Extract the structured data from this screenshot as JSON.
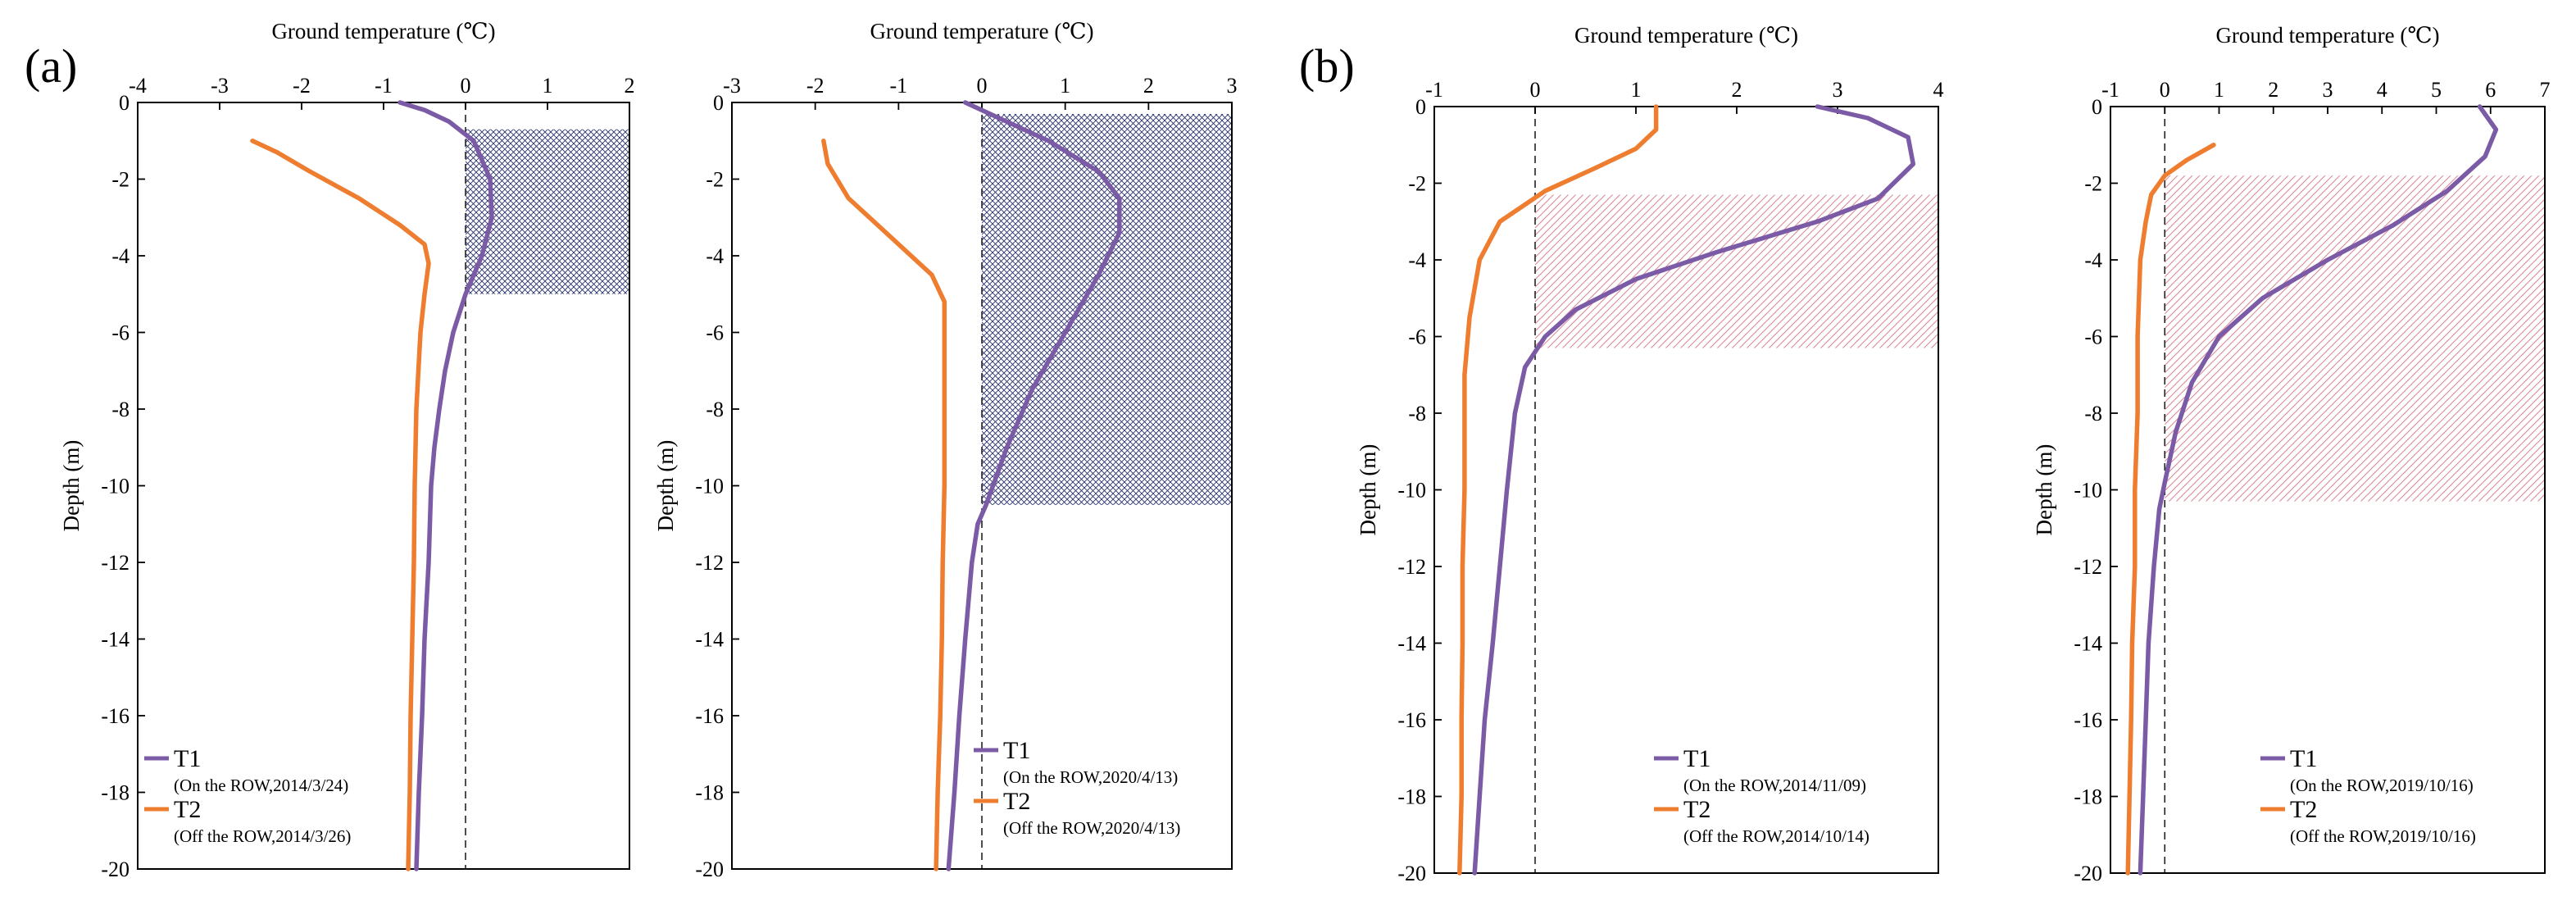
{
  "figure": {
    "panel_labels": [
      "(a)",
      "(b)"
    ],
    "colors": {
      "T1": "#7b5aa6",
      "T2": "#ee7d2f",
      "hatch_a": "#27306a",
      "hatch_b": "#d98a98",
      "background": "#ffffff"
    }
  },
  "chart_data": [
    {
      "type": "line",
      "panel": "(a)",
      "title": "Ground temperature (℃)",
      "xlabel": "Ground temperature (℃)",
      "ylabel": "Depth (m)",
      "xlim": [
        -4,
        2
      ],
      "ylim": [
        -20,
        0
      ],
      "xticks": [
        -4,
        -3,
        -2,
        -1,
        0,
        1,
        2
      ],
      "yticks": [
        0,
        -2,
        -4,
        -6,
        -8,
        -10,
        -12,
        -14,
        -16,
        -18,
        -20
      ],
      "zero_line": "dashed",
      "shaded_region": {
        "x": [
          0,
          2
        ],
        "y": [
          -0.7,
          -5.0
        ],
        "pattern": "crosshatch",
        "color": "hatch_a"
      },
      "series": [
        {
          "name": "T1",
          "label": "(On the ROW,2014/3/24)",
          "color": "T1",
          "points": [
            [
              -0.8,
              0
            ],
            [
              -0.5,
              -0.2
            ],
            [
              -0.2,
              -0.5
            ],
            [
              0.1,
              -1.0
            ],
            [
              0.3,
              -2.0
            ],
            [
              0.32,
              -3.0
            ],
            [
              0.2,
              -4.0
            ],
            [
              0.0,
              -5.0
            ],
            [
              -0.15,
              -6.0
            ],
            [
              -0.25,
              -7.0
            ],
            [
              -0.32,
              -8.0
            ],
            [
              -0.38,
              -9.0
            ],
            [
              -0.42,
              -10.0
            ],
            [
              -0.45,
              -12.0
            ],
            [
              -0.5,
              -14.0
            ],
            [
              -0.53,
              -16.0
            ],
            [
              -0.57,
              -18.0
            ],
            [
              -0.6,
              -20.0
            ]
          ]
        },
        {
          "name": "T2",
          "label": "(Off the ROW,2014/3/26)",
          "color": "T2",
          "points": [
            [
              -2.6,
              -1.0
            ],
            [
              -2.3,
              -1.3
            ],
            [
              -1.9,
              -1.8
            ],
            [
              -1.3,
              -2.5
            ],
            [
              -0.8,
              -3.2
            ],
            [
              -0.5,
              -3.7
            ],
            [
              -0.45,
              -4.2
            ],
            [
              -0.5,
              -5.0
            ],
            [
              -0.55,
              -6.0
            ],
            [
              -0.6,
              -8.0
            ],
            [
              -0.62,
              -10.0
            ],
            [
              -0.63,
              -12.0
            ],
            [
              -0.65,
              -14.0
            ],
            [
              -0.67,
              -16.0
            ],
            [
              -0.68,
              -18.0
            ],
            [
              -0.7,
              -20.0
            ]
          ]
        }
      ],
      "legend": {
        "placement": "bottom-left"
      }
    },
    {
      "type": "line",
      "panel": "(a)",
      "title": "Ground temperature (℃)",
      "xlabel": "Ground temperature (℃)",
      "ylabel": "Depth (m)",
      "xlim": [
        -3,
        3
      ],
      "ylim": [
        -20,
        0
      ],
      "xticks": [
        -3,
        -2,
        -1,
        0,
        1,
        2,
        3
      ],
      "yticks": [
        0,
        -2,
        -4,
        -6,
        -8,
        -10,
        -12,
        -14,
        -16,
        -18,
        -20
      ],
      "zero_line": "dashed",
      "shaded_region": {
        "x": [
          0,
          3
        ],
        "y": [
          -0.3,
          -10.5
        ],
        "pattern": "crosshatch",
        "color": "hatch_a"
      },
      "series": [
        {
          "name": "T1",
          "label": "(On the ROW,2020/4/13)",
          "color": "T1",
          "points": [
            [
              -0.2,
              0
            ],
            [
              0.2,
              -0.4
            ],
            [
              0.8,
              -1.0
            ],
            [
              1.4,
              -1.8
            ],
            [
              1.65,
              -2.5
            ],
            [
              1.65,
              -3.4
            ],
            [
              1.4,
              -4.5
            ],
            [
              1.0,
              -6.0
            ],
            [
              0.6,
              -7.5
            ],
            [
              0.3,
              -9.0
            ],
            [
              0.05,
              -10.5
            ],
            [
              -0.05,
              -11.0
            ],
            [
              -0.12,
              -12.0
            ],
            [
              -0.2,
              -14.0
            ],
            [
              -0.27,
              -16.0
            ],
            [
              -0.33,
              -18.0
            ],
            [
              -0.4,
              -20.0
            ]
          ]
        },
        {
          "name": "T2",
          "label": "(Off the ROW,2020/4/13)",
          "color": "T2",
          "points": [
            [
              -1.9,
              -1.0
            ],
            [
              -1.85,
              -1.6
            ],
            [
              -1.6,
              -2.5
            ],
            [
              -1.1,
              -3.5
            ],
            [
              -0.6,
              -4.5
            ],
            [
              -0.45,
              -5.2
            ],
            [
              -0.45,
              -6.0
            ],
            [
              -0.45,
              -8.0
            ],
            [
              -0.45,
              -10.0
            ],
            [
              -0.47,
              -12.0
            ],
            [
              -0.48,
              -14.0
            ],
            [
              -0.5,
              -16.0
            ],
            [
              -0.53,
              -18.0
            ],
            [
              -0.55,
              -20.0
            ]
          ]
        }
      ],
      "legend": {
        "placement": "bottom-right"
      }
    },
    {
      "type": "line",
      "panel": "(b)",
      "title": "Ground temperature (℃)",
      "xlabel": "Ground temperature (℃)",
      "ylabel": "Depth (m)",
      "xlim": [
        -1,
        4
      ],
      "ylim": [
        -20,
        0
      ],
      "xticks": [
        -1,
        0,
        1,
        2,
        3,
        4
      ],
      "yticks": [
        0,
        -2,
        -4,
        -6,
        -8,
        -10,
        -12,
        -14,
        -16,
        -18,
        -20
      ],
      "zero_line": "dashed",
      "shaded_region": {
        "x": [
          0,
          4
        ],
        "y": [
          -2.3,
          -6.3
        ],
        "pattern": "diagonal",
        "color": "hatch_b"
      },
      "series": [
        {
          "name": "T1",
          "label": "(On the ROW,2014/11/09)",
          "color": "T1",
          "points": [
            [
              2.8,
              0
            ],
            [
              3.3,
              -0.3
            ],
            [
              3.7,
              -0.8
            ],
            [
              3.75,
              -1.5
            ],
            [
              3.4,
              -2.4
            ],
            [
              2.8,
              -3.0
            ],
            [
              1.8,
              -3.8
            ],
            [
              1.0,
              -4.5
            ],
            [
              0.4,
              -5.3
            ],
            [
              0.1,
              -6.0
            ],
            [
              -0.1,
              -6.8
            ],
            [
              -0.2,
              -8.0
            ],
            [
              -0.28,
              -10.0
            ],
            [
              -0.35,
              -12.0
            ],
            [
              -0.42,
              -14.0
            ],
            [
              -0.5,
              -16.0
            ],
            [
              -0.55,
              -18.0
            ],
            [
              -0.6,
              -20.0
            ]
          ]
        },
        {
          "name": "T2",
          "label": "(Off the ROW,2014/10/14)",
          "color": "T2",
          "points": [
            [
              1.2,
              0
            ],
            [
              1.2,
              -0.6
            ],
            [
              1.0,
              -1.1
            ],
            [
              0.6,
              -1.6
            ],
            [
              0.1,
              -2.2
            ],
            [
              -0.35,
              -3.0
            ],
            [
              -0.55,
              -4.0
            ],
            [
              -0.65,
              -5.5
            ],
            [
              -0.7,
              -7.0
            ],
            [
              -0.7,
              -10.0
            ],
            [
              -0.72,
              -12.0
            ],
            [
              -0.72,
              -14.0
            ],
            [
              -0.73,
              -16.0
            ],
            [
              -0.73,
              -18.0
            ],
            [
              -0.75,
              -20.0
            ]
          ]
        }
      ],
      "legend": {
        "placement": "bottom-right"
      }
    },
    {
      "type": "line",
      "panel": "(b)",
      "title": "Ground temperature (℃)",
      "xlabel": "Ground temperature (℃)",
      "ylabel": "Depth (m)",
      "xlim": [
        -1,
        7
      ],
      "ylim": [
        -20,
        0
      ],
      "xticks": [
        -1,
        0,
        1,
        2,
        3,
        4,
        5,
        6,
        7
      ],
      "yticks": [
        0,
        -2,
        -4,
        -6,
        -8,
        -10,
        -12,
        -14,
        -16,
        -18,
        -20
      ],
      "zero_line": "dashed",
      "shaded_region": {
        "x": [
          0,
          7
        ],
        "y": [
          -1.8,
          -10.3
        ],
        "pattern": "diagonal",
        "color": "hatch_b"
      },
      "series": [
        {
          "name": "T1",
          "label": "(On the ROW,2019/10/16)",
          "color": "T1",
          "points": [
            [
              5.8,
              0
            ],
            [
              6.1,
              -0.6
            ],
            [
              5.9,
              -1.3
            ],
            [
              5.2,
              -2.2
            ],
            [
              4.2,
              -3.1
            ],
            [
              3.0,
              -4.0
            ],
            [
              1.8,
              -5.0
            ],
            [
              1.0,
              -6.0
            ],
            [
              0.5,
              -7.2
            ],
            [
              0.2,
              -8.5
            ],
            [
              0.0,
              -9.8
            ],
            [
              -0.1,
              -10.5
            ],
            [
              -0.2,
              -12.0
            ],
            [
              -0.3,
              -14.0
            ],
            [
              -0.35,
              -16.0
            ],
            [
              -0.4,
              -18.0
            ],
            [
              -0.45,
              -20.0
            ]
          ]
        },
        {
          "name": "T2",
          "label": "(Off the ROW,2019/10/16)",
          "color": "T2",
          "points": [
            [
              0.9,
              -1.0
            ],
            [
              0.4,
              -1.4
            ],
            [
              0.0,
              -1.8
            ],
            [
              -0.25,
              -2.3
            ],
            [
              -0.35,
              -3.0
            ],
            [
              -0.45,
              -4.0
            ],
            [
              -0.5,
              -6.0
            ],
            [
              -0.5,
              -8.0
            ],
            [
              -0.55,
              -10.0
            ],
            [
              -0.55,
              -12.0
            ],
            [
              -0.6,
              -14.0
            ],
            [
              -0.62,
              -16.0
            ],
            [
              -0.65,
              -18.0
            ],
            [
              -0.68,
              -20.0
            ]
          ]
        }
      ],
      "legend": {
        "placement": "bottom-right"
      }
    }
  ]
}
